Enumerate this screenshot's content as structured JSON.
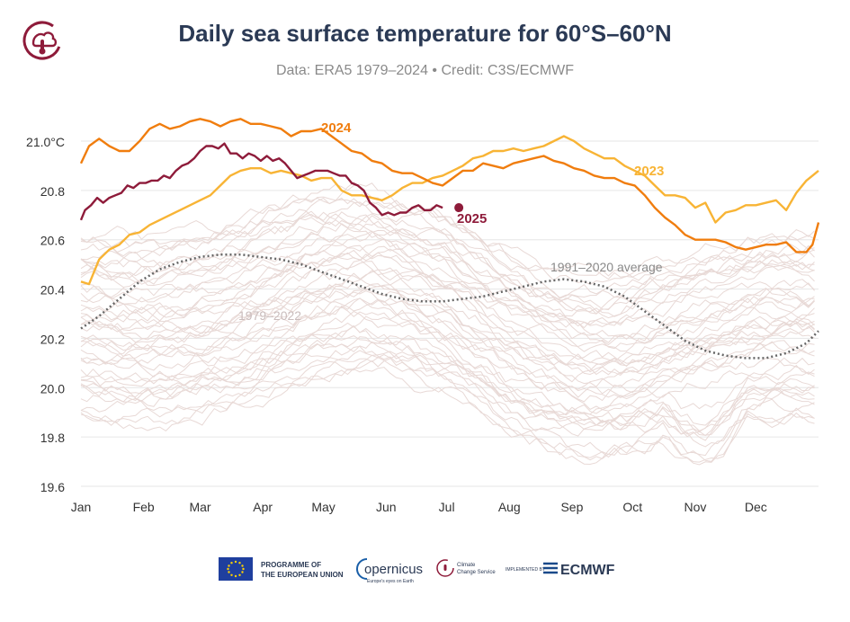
{
  "header": {
    "title": "Daily sea surface temperature for 60°S–60°N",
    "subtitle": "Data: ERA5 1979–2024 • Credit: C3S/ECMWF"
  },
  "footer": {
    "eu_line1": "PROGRAMME OF",
    "eu_line2": "THE EUROPEAN UNION",
    "copernicus": "opernicus",
    "copernicus_sub": "Europe's eyes on Earth",
    "c3s_line1": "Climate",
    "c3s_line2": "Change Service",
    "implemented_by": "IMPLEMENTED BY",
    "ecmwf": "ECMWF"
  },
  "chart_data": {
    "type": "line",
    "title": "Daily sea surface temperature for 60°S–60°N",
    "xlabel": "",
    "ylabel": "",
    "ylim": [
      19.6,
      21.1
    ],
    "yticks": [
      {
        "value": 21.0,
        "label": "21.0°C"
      },
      {
        "value": 20.8,
        "label": "20.8"
      },
      {
        "value": 20.6,
        "label": "20.6"
      },
      {
        "value": 20.4,
        "label": "20.4"
      },
      {
        "value": 20.2,
        "label": "20.2"
      },
      {
        "value": 20.0,
        "label": "20.0"
      },
      {
        "value": 19.8,
        "label": "19.8"
      },
      {
        "value": 19.6,
        "label": "19.6"
      }
    ],
    "months": [
      {
        "label": "Jan",
        "day": 1
      },
      {
        "label": "Feb",
        "day": 32
      },
      {
        "label": "Mar",
        "day": 60
      },
      {
        "label": "Apr",
        "day": 91
      },
      {
        "label": "May",
        "day": 121
      },
      {
        "label": "Jun",
        "day": 152
      },
      {
        "label": "Jul",
        "day": 182
      },
      {
        "label": "Aug",
        "day": 213
      },
      {
        "label": "Sep",
        "day": 244
      },
      {
        "label": "Oct",
        "day": 274
      },
      {
        "label": "Nov",
        "day": 305
      },
      {
        "label": "Dec",
        "day": 335
      }
    ],
    "series": [
      {
        "name": "2024",
        "color": "#f07d0e",
        "points": [
          [
            1,
            20.91
          ],
          [
            5,
            20.98
          ],
          [
            10,
            21.01
          ],
          [
            15,
            20.98
          ],
          [
            20,
            20.96
          ],
          [
            25,
            20.96
          ],
          [
            30,
            21.0
          ],
          [
            35,
            21.05
          ],
          [
            40,
            21.07
          ],
          [
            45,
            21.05
          ],
          [
            50,
            21.06
          ],
          [
            55,
            21.08
          ],
          [
            60,
            21.09
          ],
          [
            65,
            21.08
          ],
          [
            70,
            21.06
          ],
          [
            75,
            21.08
          ],
          [
            80,
            21.09
          ],
          [
            85,
            21.07
          ],
          [
            90,
            21.07
          ],
          [
            95,
            21.06
          ],
          [
            100,
            21.05
          ],
          [
            105,
            21.02
          ],
          [
            110,
            21.04
          ],
          [
            115,
            21.04
          ],
          [
            120,
            21.05
          ],
          [
            125,
            21.02
          ],
          [
            130,
            20.99
          ],
          [
            135,
            20.96
          ],
          [
            140,
            20.95
          ],
          [
            145,
            20.92
          ],
          [
            150,
            20.91
          ],
          [
            155,
            20.88
          ],
          [
            160,
            20.87
          ],
          [
            165,
            20.87
          ],
          [
            170,
            20.85
          ],
          [
            175,
            20.83
          ],
          [
            180,
            20.82
          ],
          [
            185,
            20.85
          ],
          [
            190,
            20.88
          ],
          [
            195,
            20.88
          ],
          [
            200,
            20.91
          ],
          [
            205,
            20.9
          ],
          [
            210,
            20.89
          ],
          [
            215,
            20.91
          ],
          [
            220,
            20.92
          ],
          [
            225,
            20.93
          ],
          [
            230,
            20.94
          ],
          [
            235,
            20.92
          ],
          [
            240,
            20.91
          ],
          [
            245,
            20.89
          ],
          [
            250,
            20.88
          ],
          [
            255,
            20.86
          ],
          [
            260,
            20.85
          ],
          [
            265,
            20.85
          ],
          [
            270,
            20.83
          ],
          [
            275,
            20.82
          ],
          [
            280,
            20.78
          ],
          [
            285,
            20.73
          ],
          [
            290,
            20.69
          ],
          [
            295,
            20.66
          ],
          [
            300,
            20.62
          ],
          [
            305,
            20.6
          ],
          [
            310,
            20.6
          ],
          [
            315,
            20.6
          ],
          [
            320,
            20.59
          ],
          [
            325,
            20.57
          ],
          [
            330,
            20.56
          ],
          [
            335,
            20.57
          ],
          [
            340,
            20.58
          ],
          [
            345,
            20.58
          ],
          [
            350,
            20.59
          ],
          [
            355,
            20.55
          ],
          [
            360,
            20.55
          ],
          [
            363,
            20.58
          ],
          [
            366,
            20.67
          ]
        ]
      },
      {
        "name": "2023",
        "color": "#f8b435",
        "points": [
          [
            1,
            20.43
          ],
          [
            5,
            20.42
          ],
          [
            10,
            20.52
          ],
          [
            15,
            20.56
          ],
          [
            20,
            20.58
          ],
          [
            25,
            20.62
          ],
          [
            30,
            20.63
          ],
          [
            35,
            20.66
          ],
          [
            40,
            20.68
          ],
          [
            45,
            20.7
          ],
          [
            50,
            20.72
          ],
          [
            55,
            20.74
          ],
          [
            60,
            20.76
          ],
          [
            65,
            20.78
          ],
          [
            70,
            20.82
          ],
          [
            75,
            20.86
          ],
          [
            80,
            20.88
          ],
          [
            85,
            20.89
          ],
          [
            90,
            20.89
          ],
          [
            95,
            20.87
          ],
          [
            100,
            20.88
          ],
          [
            105,
            20.87
          ],
          [
            110,
            20.86
          ],
          [
            115,
            20.84
          ],
          [
            120,
            20.85
          ],
          [
            125,
            20.85
          ],
          [
            130,
            20.8
          ],
          [
            135,
            20.78
          ],
          [
            140,
            20.78
          ],
          [
            145,
            20.77
          ],
          [
            150,
            20.76
          ],
          [
            155,
            20.78
          ],
          [
            160,
            20.81
          ],
          [
            165,
            20.83
          ],
          [
            170,
            20.83
          ],
          [
            175,
            20.85
          ],
          [
            180,
            20.86
          ],
          [
            185,
            20.88
          ],
          [
            190,
            20.9
          ],
          [
            195,
            20.93
          ],
          [
            200,
            20.94
          ],
          [
            205,
            20.96
          ],
          [
            210,
            20.96
          ],
          [
            215,
            20.97
          ],
          [
            220,
            20.96
          ],
          [
            225,
            20.97
          ],
          [
            230,
            20.98
          ],
          [
            235,
            21.0
          ],
          [
            240,
            21.02
          ],
          [
            245,
            21.0
          ],
          [
            250,
            20.97
          ],
          [
            255,
            20.95
          ],
          [
            260,
            20.93
          ],
          [
            265,
            20.93
          ],
          [
            270,
            20.9
          ],
          [
            275,
            20.88
          ],
          [
            280,
            20.86
          ],
          [
            285,
            20.82
          ],
          [
            290,
            20.78
          ],
          [
            295,
            20.78
          ],
          [
            300,
            20.77
          ],
          [
            305,
            20.73
          ],
          [
            310,
            20.75
          ],
          [
            315,
            20.67
          ],
          [
            320,
            20.71
          ],
          [
            325,
            20.72
          ],
          [
            330,
            20.74
          ],
          [
            335,
            20.74
          ],
          [
            340,
            20.75
          ],
          [
            345,
            20.76
          ],
          [
            350,
            20.72
          ],
          [
            355,
            20.79
          ],
          [
            360,
            20.84
          ],
          [
            363,
            20.86
          ],
          [
            366,
            20.88
          ]
        ]
      },
      {
        "name": "2025",
        "color": "#8e1b3a",
        "points": [
          [
            1,
            20.68
          ],
          [
            3,
            20.72
          ],
          [
            6,
            20.74
          ],
          [
            9,
            20.77
          ],
          [
            12,
            20.75
          ],
          [
            15,
            20.77
          ],
          [
            18,
            20.78
          ],
          [
            21,
            20.79
          ],
          [
            24,
            20.82
          ],
          [
            27,
            20.81
          ],
          [
            30,
            20.83
          ],
          [
            33,
            20.83
          ],
          [
            36,
            20.84
          ],
          [
            39,
            20.84
          ],
          [
            42,
            20.86
          ],
          [
            45,
            20.85
          ],
          [
            48,
            20.88
          ],
          [
            51,
            20.9
          ],
          [
            54,
            20.91
          ],
          [
            57,
            20.93
          ],
          [
            60,
            20.96
          ],
          [
            63,
            20.98
          ],
          [
            66,
            20.98
          ],
          [
            69,
            20.97
          ],
          [
            72,
            20.99
          ],
          [
            75,
            20.95
          ],
          [
            78,
            20.95
          ],
          [
            81,
            20.93
          ],
          [
            84,
            20.95
          ],
          [
            87,
            20.94
          ],
          [
            90,
            20.92
          ],
          [
            93,
            20.94
          ],
          [
            96,
            20.92
          ],
          [
            99,
            20.93
          ],
          [
            102,
            20.91
          ],
          [
            105,
            20.88
          ],
          [
            108,
            20.85
          ],
          [
            111,
            20.86
          ],
          [
            114,
            20.87
          ],
          [
            117,
            20.88
          ],
          [
            120,
            20.88
          ],
          [
            123,
            20.88
          ],
          [
            126,
            20.87
          ],
          [
            129,
            20.86
          ],
          [
            132,
            20.86
          ],
          [
            135,
            20.83
          ],
          [
            138,
            20.82
          ],
          [
            141,
            20.8
          ],
          [
            144,
            20.75
          ],
          [
            147,
            20.73
          ],
          [
            150,
            20.7
          ],
          [
            153,
            20.71
          ],
          [
            156,
            20.7
          ],
          [
            159,
            20.71
          ],
          [
            162,
            20.71
          ],
          [
            165,
            20.73
          ],
          [
            168,
            20.74
          ],
          [
            171,
            20.72
          ],
          [
            174,
            20.72
          ],
          [
            177,
            20.74
          ],
          [
            180,
            20.73
          ]
        ]
      },
      {
        "name": "1991–2020 average",
        "color": "#666666",
        "points": [
          [
            1,
            20.24
          ],
          [
            10,
            20.29
          ],
          [
            20,
            20.36
          ],
          [
            30,
            20.43
          ],
          [
            40,
            20.48
          ],
          [
            50,
            20.51
          ],
          [
            60,
            20.53
          ],
          [
            70,
            20.54
          ],
          [
            80,
            20.54
          ],
          [
            90,
            20.53
          ],
          [
            100,
            20.52
          ],
          [
            110,
            20.5
          ],
          [
            120,
            20.47
          ],
          [
            130,
            20.44
          ],
          [
            140,
            20.41
          ],
          [
            150,
            20.38
          ],
          [
            160,
            20.36
          ],
          [
            170,
            20.35
          ],
          [
            180,
            20.35
          ],
          [
            190,
            20.36
          ],
          [
            200,
            20.37
          ],
          [
            210,
            20.39
          ],
          [
            220,
            20.41
          ],
          [
            230,
            20.43
          ],
          [
            240,
            20.44
          ],
          [
            250,
            20.43
          ],
          [
            260,
            20.41
          ],
          [
            270,
            20.37
          ],
          [
            280,
            20.31
          ],
          [
            290,
            20.25
          ],
          [
            300,
            20.19
          ],
          [
            310,
            20.15
          ],
          [
            320,
            20.13
          ],
          [
            330,
            20.12
          ],
          [
            340,
            20.12
          ],
          [
            350,
            20.14
          ],
          [
            360,
            20.18
          ],
          [
            366,
            20.23
          ]
        ]
      }
    ],
    "labels": {
      "y2024": "2024",
      "y2023": "2023",
      "y2025": "2025",
      "average": "1991–2020 average",
      "historical": "1979–2022"
    }
  }
}
